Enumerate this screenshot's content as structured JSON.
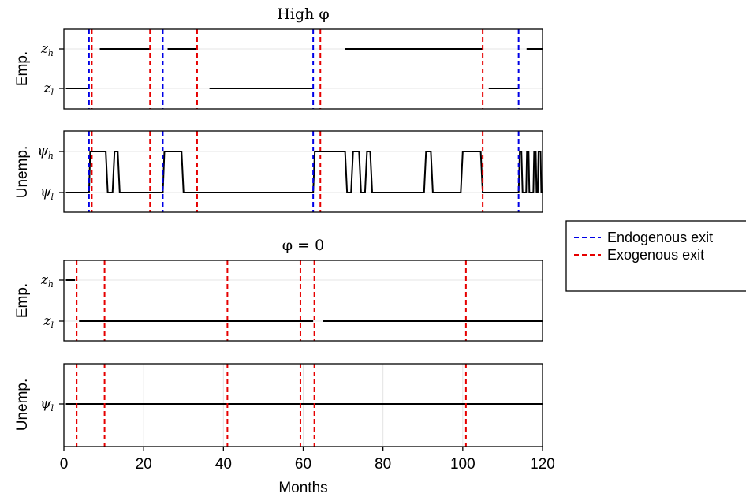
{
  "chart_data": [
    {
      "type": "line",
      "title": "High φ",
      "ylabel": "Emp.",
      "y_levels": [
        "z_h",
        "z_l"
      ],
      "xlim": [
        0,
        120
      ],
      "segments": [
        {
          "level": "z_l",
          "x": [
            0.5,
            6.3
          ]
        },
        {
          "level": "z_h",
          "x": [
            9.0,
            21.5
          ]
        },
        {
          "level": "z_h",
          "x": [
            26.0,
            33.3
          ]
        },
        {
          "level": "z_l",
          "x": [
            36.5,
            62.5
          ]
        },
        {
          "level": "z_h",
          "x": [
            70.5,
            105.0
          ]
        },
        {
          "level": "z_l",
          "x": [
            106.5,
            114.0
          ]
        },
        {
          "level": "z_h",
          "x": [
            116.0,
            120.0
          ]
        }
      ],
      "endogenous_exits": [
        6.3,
        24.8,
        62.5,
        114.0
      ],
      "exogenous_exits": [
        7.0,
        21.6,
        33.4,
        64.3,
        105.0
      ]
    },
    {
      "type": "line",
      "ylabel": "Unemp.",
      "y_levels": [
        "ψ_h",
        "ψ_l"
      ],
      "xlim": [
        0,
        120
      ],
      "path": [
        [
          0.5,
          "ψ_l"
        ],
        [
          6.3,
          "ψ_l"
        ],
        [
          6.6,
          "ψ_h"
        ],
        [
          10.5,
          "ψ_h"
        ],
        [
          11.0,
          "ψ_l"
        ],
        [
          12.2,
          "ψ_l"
        ],
        [
          12.7,
          "ψ_h"
        ],
        [
          13.5,
          "ψ_h"
        ],
        [
          14.0,
          "ψ_l"
        ],
        [
          24.8,
          "ψ_l"
        ],
        [
          25.2,
          "ψ_h"
        ],
        [
          29.5,
          "ψ_h"
        ],
        [
          30.0,
          "ψ_l"
        ],
        [
          62.5,
          "ψ_l"
        ],
        [
          62.9,
          "ψ_h"
        ],
        [
          70.5,
          "ψ_h"
        ],
        [
          71.0,
          "ψ_l"
        ],
        [
          72.0,
          "ψ_l"
        ],
        [
          72.5,
          "ψ_h"
        ],
        [
          74.0,
          "ψ_h"
        ],
        [
          74.5,
          "ψ_l"
        ],
        [
          75.5,
          "ψ_l"
        ],
        [
          76.0,
          "ψ_h"
        ],
        [
          76.8,
          "ψ_h"
        ],
        [
          77.3,
          "ψ_l"
        ],
        [
          90.3,
          "ψ_l"
        ],
        [
          90.8,
          "ψ_h"
        ],
        [
          92.0,
          "ψ_h"
        ],
        [
          92.5,
          "ψ_l"
        ],
        [
          99.5,
          "ψ_l"
        ],
        [
          100.0,
          "ψ_h"
        ],
        [
          104.5,
          "ψ_h"
        ],
        [
          105.0,
          "ψ_l"
        ],
        [
          114.0,
          "ψ_l"
        ],
        [
          114.3,
          "ψ_h"
        ],
        [
          114.7,
          "ψ_h"
        ],
        [
          115.0,
          "ψ_l"
        ],
        [
          115.9,
          "ψ_l"
        ],
        [
          116.1,
          "ψ_h"
        ],
        [
          116.5,
          "ψ_h"
        ],
        [
          116.7,
          "ψ_l"
        ],
        [
          117.7,
          "ψ_l"
        ],
        [
          117.9,
          "ψ_h"
        ],
        [
          118.3,
          "ψ_h"
        ],
        [
          118.5,
          "ψ_l"
        ],
        [
          118.8,
          "ψ_l"
        ],
        [
          119.0,
          "ψ_h"
        ],
        [
          119.5,
          "ψ_h"
        ],
        [
          119.7,
          "ψ_l"
        ],
        [
          120.0,
          "ψ_l"
        ]
      ],
      "endogenous_exits": [
        6.3,
        24.8,
        62.5,
        114.0
      ],
      "exogenous_exits": [
        7.0,
        21.6,
        33.4,
        64.3,
        105.0
      ]
    },
    {
      "type": "line",
      "title": "φ = 0",
      "ylabel": "Emp.",
      "y_levels": [
        "z_h",
        "z_l"
      ],
      "xlim": [
        0,
        120
      ],
      "segments": [
        {
          "level": "z_h",
          "x": [
            0.5,
            2.8
          ]
        },
        {
          "level": "z_l",
          "x": [
            3.8,
            62.5
          ]
        },
        {
          "level": "z_l",
          "x": [
            65.0,
            120.0
          ]
        }
      ],
      "endogenous_exits": [],
      "exogenous_exits": [
        3.2,
        10.2,
        41.0,
        59.3,
        62.8,
        100.8
      ]
    },
    {
      "type": "line",
      "ylabel": "Unemp.",
      "y_levels": [
        "ψ_l"
      ],
      "xlim": [
        0,
        120
      ],
      "xlabel": "Months",
      "xticks": [
        0,
        20,
        40,
        60,
        80,
        100,
        120
      ],
      "path": [
        [
          0.5,
          "ψ_l"
        ],
        [
          120.0,
          "ψ_l"
        ]
      ],
      "endogenous_exits": [],
      "exogenous_exits": [
        3.2,
        10.2,
        41.0,
        59.3,
        62.8,
        100.8
      ]
    }
  ],
  "legend": {
    "placement": "right",
    "entries": [
      {
        "label": "Endogenous exit",
        "color": "#0000e6"
      },
      {
        "label": "Exogenous exit",
        "color": "#e60000"
      }
    ]
  },
  "colors": {
    "endogenous": "#0000e6",
    "exogenous": "#e60000",
    "series": "#000000",
    "grid": "#e4e4e4"
  }
}
